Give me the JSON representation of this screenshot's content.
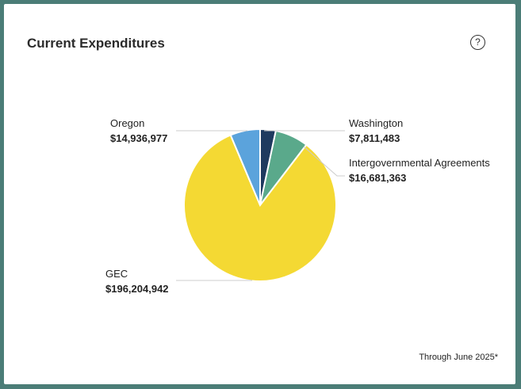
{
  "card": {
    "title": "Current Expenditures",
    "help_icon": "question-circle-icon",
    "footnote": "Through June 2025*"
  },
  "chart_data": {
    "type": "pie",
    "title": "Current Expenditures",
    "slices": [
      {
        "label": "Washington",
        "value": 7811483,
        "display": "$7,811,483",
        "color": "#1f3a5f"
      },
      {
        "label": "Intergovernmental Agreements",
        "value": 16681363,
        "display": "$16,681,363",
        "color": "#5aa98b"
      },
      {
        "label": "GEC",
        "value": 196204942,
        "display": "$196,204,942",
        "color": "#f4d933"
      },
      {
        "label": "Oregon",
        "value": 14936977,
        "display": "$14,936,977",
        "color": "#5ba3dc"
      }
    ]
  }
}
